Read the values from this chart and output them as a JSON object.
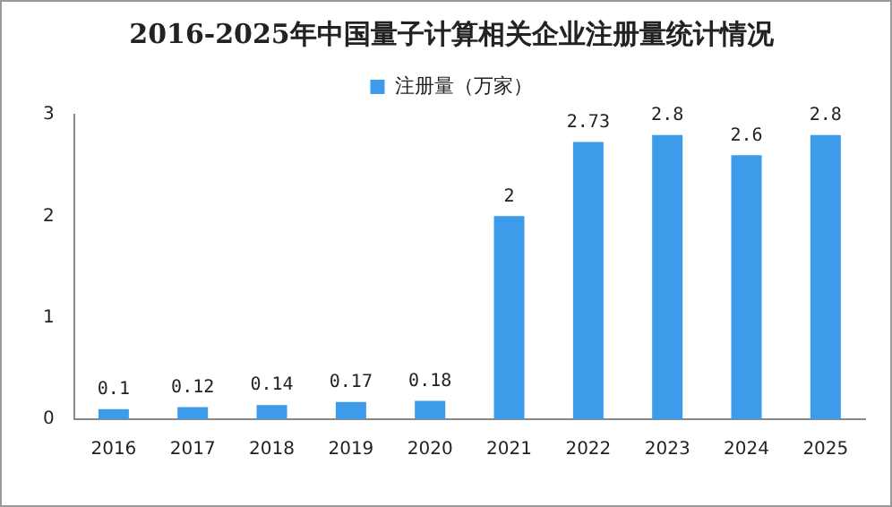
{
  "chart_data": {
    "type": "bar",
    "title": "2016-2025年中国量子计算相关企业注册量统计情况",
    "categories": [
      "2016",
      "2017",
      "2018",
      "2019",
      "2020",
      "2021",
      "2022",
      "2023",
      "2024",
      "2025"
    ],
    "series": [
      {
        "name": "注册量（万家）",
        "color": "#3d9be9",
        "values": [
          0.1,
          0.12,
          0.14,
          0.17,
          0.18,
          2,
          2.73,
          2.8,
          2.6,
          2.8
        ]
      }
    ],
    "ylim": [
      0,
      3
    ],
    "yticks": [
      0,
      1,
      2,
      3
    ],
    "grid": false,
    "legend": "top",
    "data_labels": true
  }
}
